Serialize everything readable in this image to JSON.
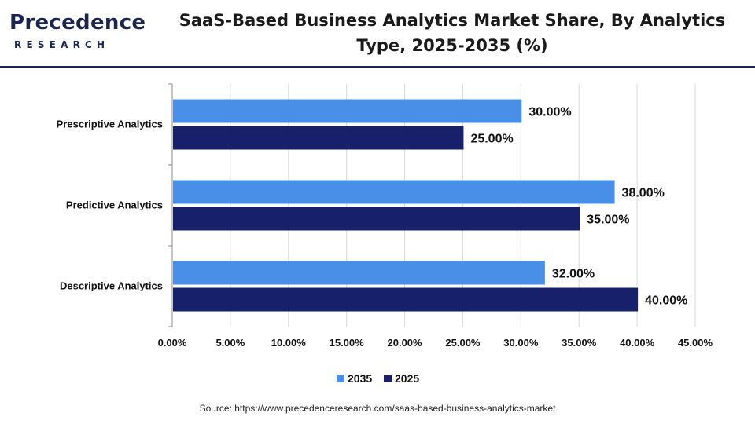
{
  "header": {
    "logo_main": "Precedence",
    "logo_sub": "RESEARCH",
    "title_line1": "SaaS-Based Business Analytics Market Share, By Analytics",
    "title_line2": "Type, 2025-2035 (%)"
  },
  "colors": {
    "series_2035": "#4a8fe7",
    "series_2025": "#17206b",
    "brand": "#1b2550"
  },
  "chart_data": {
    "type": "bar",
    "orientation": "horizontal",
    "categories": [
      "Prescriptive Analytics",
      "Predictive Analytics",
      "Descriptive Analytics"
    ],
    "series": [
      {
        "name": "2035",
        "values": [
          30.0,
          38.0,
          32.0
        ],
        "labels": [
          "30.00%",
          "38.00%",
          "32.00%"
        ]
      },
      {
        "name": "2025",
        "values": [
          25.0,
          35.0,
          40.0
        ],
        "labels": [
          "25.00%",
          "35.00%",
          "40.00%"
        ]
      }
    ],
    "xlim": [
      0,
      45
    ],
    "x_ticks": [
      "0.00%",
      "5.00%",
      "10.00%",
      "15.00%",
      "20.00%",
      "25.00%",
      "30.00%",
      "35.00%",
      "40.00%",
      "45.00%"
    ],
    "grid": true,
    "legend_position": "bottom",
    "legend": [
      "2035",
      "2025"
    ]
  },
  "footer": {
    "source": "Source: https://www.precedenceresearch.com/saas-based-business-analytics-market"
  }
}
